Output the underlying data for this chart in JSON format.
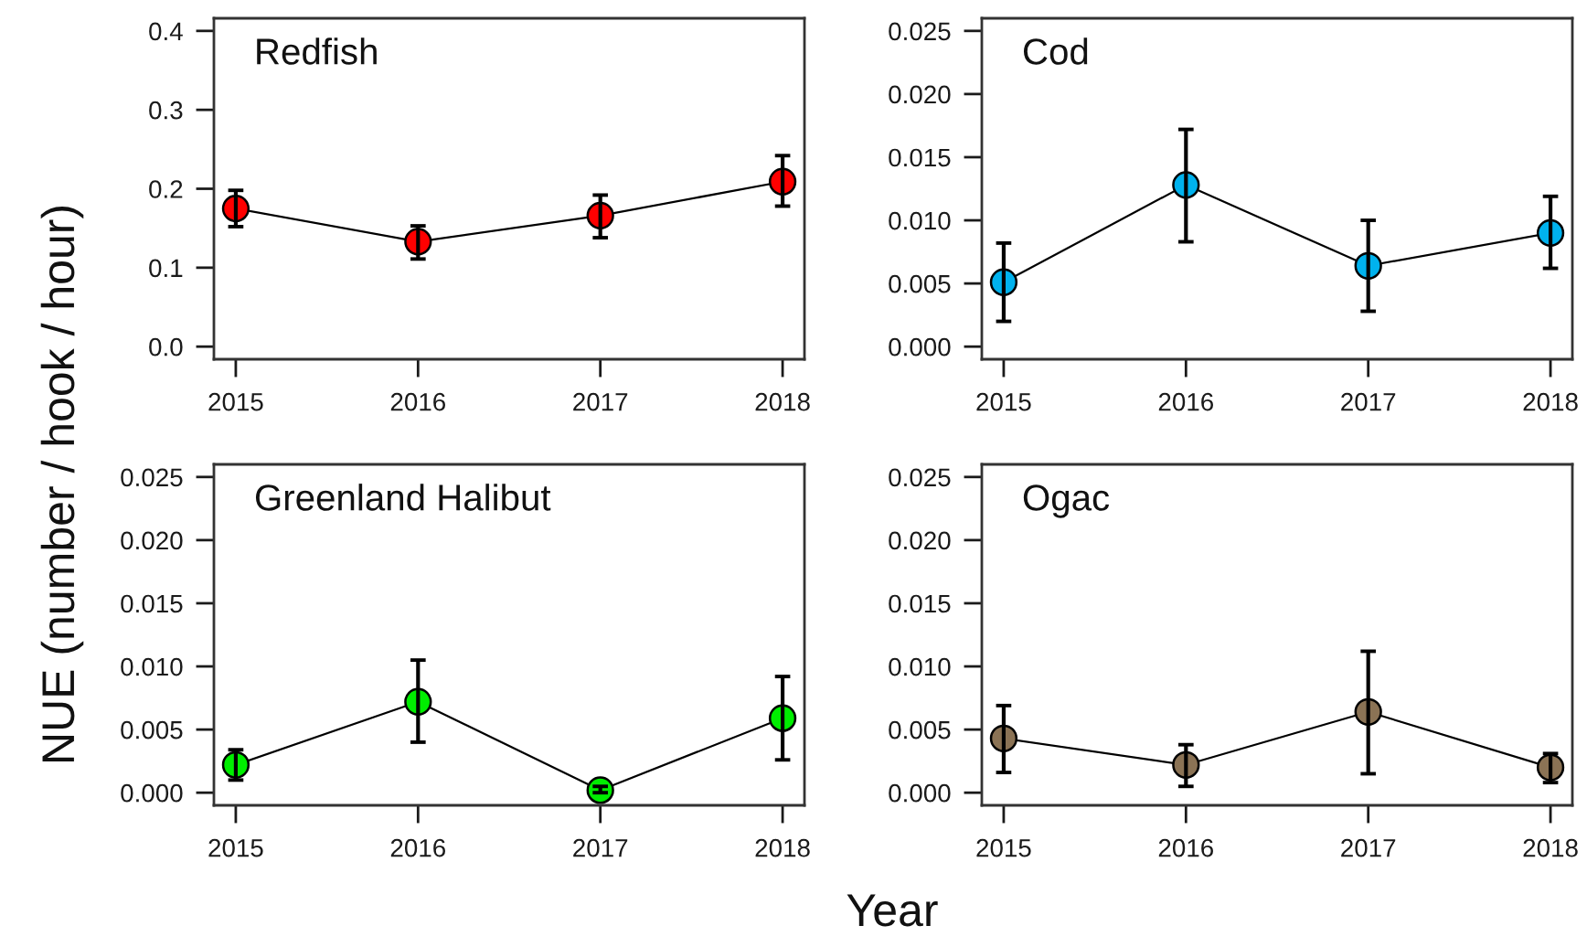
{
  "chart_data": [
    {
      "type": "line",
      "title": "Redfish",
      "ylabel": "NUE (number / hook / hour)",
      "xlabel": "Year",
      "x": [
        2015,
        2016,
        2017,
        2018
      ],
      "xlim": [
        2014.88,
        2018.12
      ],
      "xticks": [
        2015,
        2016,
        2017,
        2018
      ],
      "ylim": [
        -0.016,
        0.416
      ],
      "yticks": [
        {
          "value": 0.0,
          "label": "0.0"
        },
        {
          "value": 0.1,
          "label": "0.1"
        },
        {
          "value": 0.2,
          "label": "0.2"
        },
        {
          "value": 0.3,
          "label": "0.3"
        },
        {
          "value": 0.4,
          "label": "0.4"
        }
      ],
      "marker": "circle",
      "line_style": "solid",
      "series": [
        {
          "color": "#ff0000",
          "values": [
            0.175,
            0.133,
            0.166,
            0.209
          ],
          "errors": [
            [
              0.152,
              0.198
            ],
            [
              0.111,
              0.153
            ],
            [
              0.138,
              0.192
            ],
            [
              0.178,
              0.242
            ]
          ]
        }
      ]
    },
    {
      "type": "line",
      "title": "Cod",
      "x": [
        2015,
        2016,
        2017,
        2018
      ],
      "xlim": [
        2014.88,
        2018.12
      ],
      "xticks": [
        2015,
        2016,
        2017,
        2018
      ],
      "ylim": [
        -0.001,
        0.026
      ],
      "yticks": [
        {
          "value": 0.0,
          "label": "0.000"
        },
        {
          "value": 0.005,
          "label": "0.005"
        },
        {
          "value": 0.01,
          "label": "0.010"
        },
        {
          "value": 0.015,
          "label": "0.015"
        },
        {
          "value": 0.02,
          "label": "0.020"
        },
        {
          "value": 0.025,
          "label": "0.025"
        }
      ],
      "marker": "circle",
      "line_style": "solid",
      "series": [
        {
          "color": "#00b2ee",
          "values": [
            0.0051,
            0.0128,
            0.0064,
            0.009
          ],
          "errors": [
            [
              0.002,
              0.0082
            ],
            [
              0.0083,
              0.0172
            ],
            [
              0.0028,
              0.01
            ],
            [
              0.0062,
              0.0119
            ]
          ]
        }
      ]
    },
    {
      "type": "line",
      "title": "Greenland Halibut",
      "x": [
        2015,
        2016,
        2017,
        2018
      ],
      "xlim": [
        2014.88,
        2018.12
      ],
      "xticks": [
        2015,
        2016,
        2017,
        2018
      ],
      "ylim": [
        -0.001,
        0.026
      ],
      "yticks": [
        {
          "value": 0.0,
          "label": "0.000"
        },
        {
          "value": 0.005,
          "label": "0.005"
        },
        {
          "value": 0.01,
          "label": "0.010"
        },
        {
          "value": 0.015,
          "label": "0.015"
        },
        {
          "value": 0.02,
          "label": "0.020"
        },
        {
          "value": 0.025,
          "label": "0.025"
        }
      ],
      "marker": "circle",
      "line_style": "solid",
      "series": [
        {
          "color": "#00ee00",
          "values": [
            0.0022,
            0.0072,
            0.0002,
            0.0059
          ],
          "errors": [
            [
              0.001,
              0.0034
            ],
            [
              0.004,
              0.0105
            ],
            [
              0.0,
              0.0005
            ],
            [
              0.0026,
              0.0092
            ]
          ]
        }
      ]
    },
    {
      "type": "line",
      "title": "Ogac",
      "x": [
        2015,
        2016,
        2017,
        2018
      ],
      "xlim": [
        2014.88,
        2018.12
      ],
      "xticks": [
        2015,
        2016,
        2017,
        2018
      ],
      "ylim": [
        -0.001,
        0.026
      ],
      "yticks": [
        {
          "value": 0.0,
          "label": "0.000"
        },
        {
          "value": 0.005,
          "label": "0.005"
        },
        {
          "value": 0.01,
          "label": "0.010"
        },
        {
          "value": 0.015,
          "label": "0.015"
        },
        {
          "value": 0.02,
          "label": "0.020"
        },
        {
          "value": 0.025,
          "label": "0.025"
        }
      ],
      "marker": "circle",
      "line_style": "solid",
      "series": [
        {
          "color": "#8b7355",
          "values": [
            0.0043,
            0.0022,
            0.0064,
            0.002
          ],
          "errors": [
            [
              0.0016,
              0.0069
            ],
            [
              0.0005,
              0.0038
            ],
            [
              0.0015,
              0.0112
            ],
            [
              0.0008,
              0.0031
            ]
          ]
        }
      ]
    }
  ]
}
